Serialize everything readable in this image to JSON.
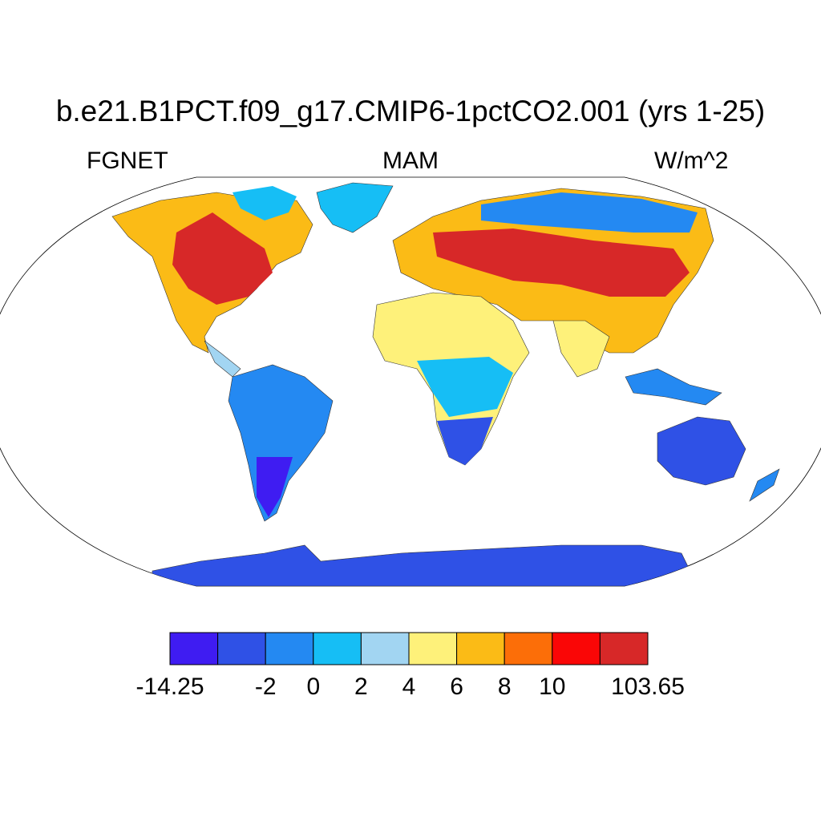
{
  "title": "b.e21.B1PCT.f09_g17.CMIP6-1pctCO2.001 (yrs 1-25)",
  "left_label": "FGNET",
  "center_label": "MAM",
  "right_label": "W/m^2",
  "colorbar": {
    "colors": [
      "#3f1cf2",
      "#2f51e6",
      "#2489f2",
      "#16bef5",
      "#a2d5f2",
      "#fef17a",
      "#fbbb16",
      "#fc6e08",
      "#fa0606",
      "#d72828"
    ],
    "tick_labels": [
      "-14.25",
      "-2",
      "0",
      "2",
      "4",
      "6",
      "8",
      "10",
      "103.65"
    ],
    "tick_boundary_index": [
      0,
      2,
      3,
      4,
      5,
      6,
      7,
      8,
      10
    ]
  },
  "regions": [
    {
      "name": "North America interior",
      "class": 10
    },
    {
      "name": "Canada",
      "class": 8
    },
    {
      "name": "Central Asia / Mongolia",
      "class": 10
    },
    {
      "name": "Siberia",
      "class": 3
    },
    {
      "name": "Europe",
      "class": 8
    },
    {
      "name": "Sahara",
      "class": 6
    },
    {
      "name": "Central Africa",
      "class": 4
    },
    {
      "name": "Southern Africa",
      "class": 2
    },
    {
      "name": "South America",
      "class": 3
    },
    {
      "name": "Patagonia",
      "class": 1
    },
    {
      "name": "Australia",
      "class": 1
    },
    {
      "name": "Antarctica",
      "class": 2
    },
    {
      "name": "Greenland",
      "class": 4
    },
    {
      "name": "India",
      "class": 6
    }
  ]
}
